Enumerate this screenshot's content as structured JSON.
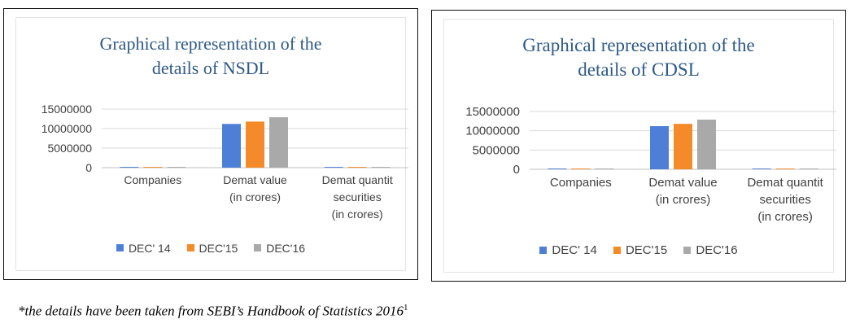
{
  "chart_data": [
    {
      "type": "bar",
      "title_lines": [
        "Graphical representation of the",
        "details of NSDL"
      ],
      "categories": [
        [
          "Companies"
        ],
        [
          "Demat value",
          "(in crores)"
        ],
        [
          "Demat quantit",
          "securities",
          "(in crores)"
        ]
      ],
      "series": [
        {
          "name": "DEC' 14",
          "values": [
            200000,
            11200000,
            200000
          ]
        },
        {
          "name": "DEC'15",
          "values": [
            200000,
            11800000,
            200000
          ]
        },
        {
          "name": "DEC'16",
          "values": [
            200000,
            12900000,
            200000
          ]
        }
      ],
      "y_ticks": [
        "0",
        "5000000",
        "10000000",
        "15000000"
      ],
      "ylim": [
        0,
        15000000
      ],
      "grid": true,
      "legend": "bottom"
    },
    {
      "type": "bar",
      "title_lines": [
        "Graphical representation of the",
        "details of CDSL"
      ],
      "categories": [
        [
          "Companies"
        ],
        [
          "Demat value",
          "(in crores)"
        ],
        [
          "Demat quantit",
          "securities",
          "(in crores)"
        ]
      ],
      "series": [
        {
          "name": "DEC' 14",
          "values": [
            200000,
            11200000,
            200000
          ]
        },
        {
          "name": "DEC'15",
          "values": [
            200000,
            11800000,
            200000
          ]
        },
        {
          "name": "DEC'16",
          "values": [
            200000,
            12900000,
            200000
          ]
        }
      ],
      "y_ticks": [
        "0",
        "5000000",
        "10000000",
        "15000000"
      ],
      "ylim": [
        0,
        15000000
      ],
      "grid": true,
      "legend": "bottom"
    }
  ],
  "colors": [
    "#4e7fd6",
    "#f58a2b",
    "#a9a9a9"
  ],
  "footnote": {
    "text": "*the details have been taken from SEBI’s Handbook of Statistics 2016",
    "ref": "1"
  }
}
